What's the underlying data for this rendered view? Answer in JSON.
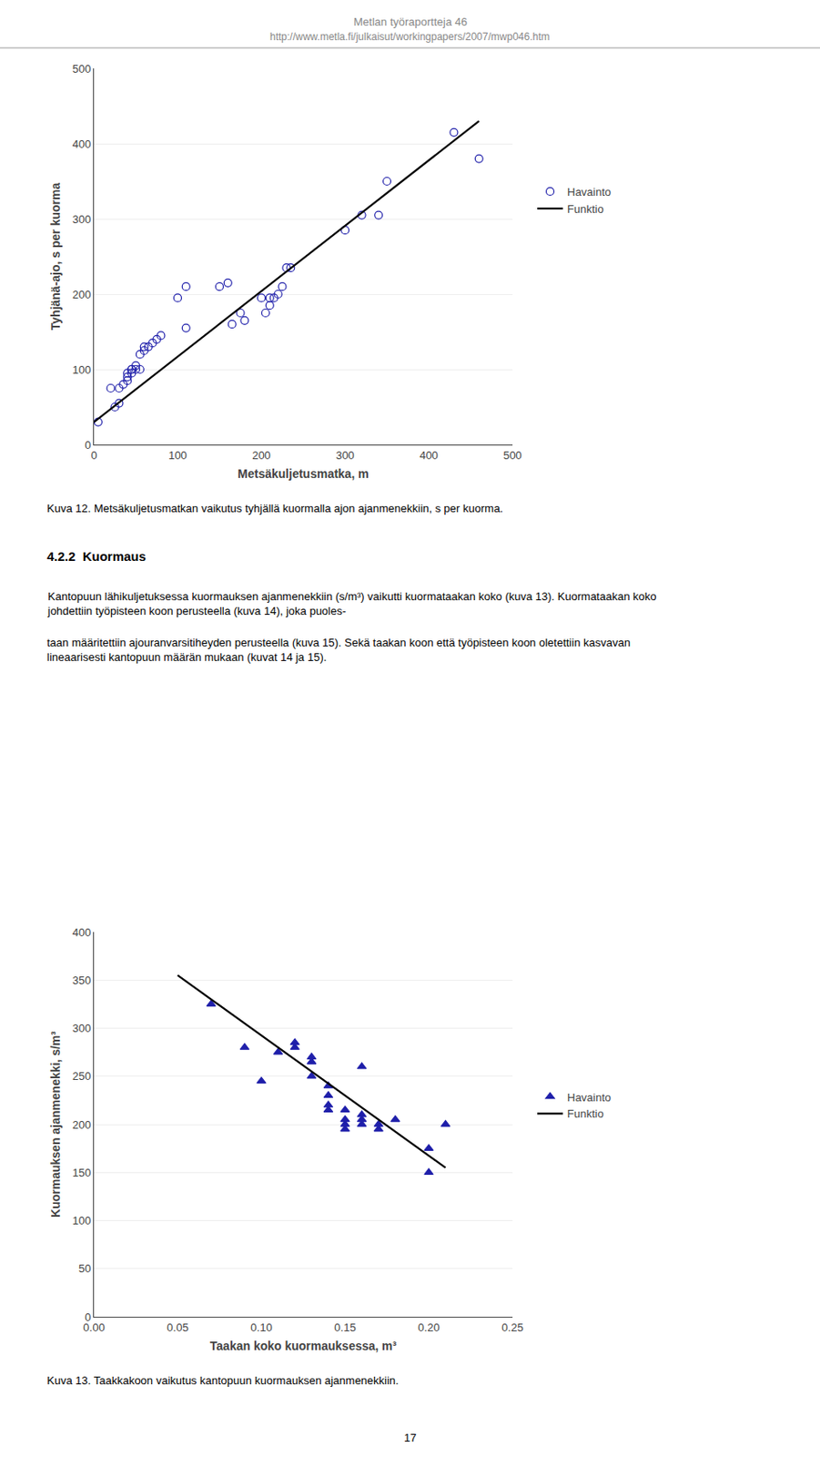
{
  "annotations": [
    "Metlan työraportteja 46",
    "http://www.metla.fi/julkaisut/workingpapers/2007/mwp046.htm",
    "4.2.2  Kuormaus",
    "Kantopuun lähikuljetuksessa kuormauksen ajanmenekkiin (s/m³) vaikutti kuormataakan koko (kuva 13). Kuormataakan koko johdettiin työpisteen koon perusteella (kuva 14), joka puoles-",
    "taan määritettiin ajouranvarsitiheyden perusteella (kuva 15). Sekä taakan koon että työpisteen koon oletettiin kasvavan lineaarisesti kantopuun määrän mukaan (kuvat 14 ja 15).",
    "17"
  ],
  "chart_data": [
    {
      "type": "scatter",
      "x_label": "Metsäkuljetusmatka, m",
      "y_label": "Tyhjänä-ajo, s per kuorma",
      "annotations": [
        "Kuva 12. Metsäkuljetusmatkan vaikutus tyhjällä kuormalla ajon ajanmenekkiin, s per kuorma."
      ],
      "xlim": [
        0,
        500
      ],
      "ylim": [
        0,
        500
      ],
      "xticks": [
        0,
        100,
        200,
        300,
        400,
        500
      ],
      "yticks": [
        0,
        100,
        200,
        300,
        400,
        500
      ],
      "grid": "y",
      "legend": "right",
      "series": [
        {
          "name": "Havainto",
          "type": "scatter",
          "marker": "circle-open",
          "color": "#1F1FAA",
          "x": [
            5,
            20,
            25,
            30,
            30,
            35,
            40,
            40,
            40,
            45,
            45,
            45,
            50,
            50,
            55,
            55,
            60,
            60,
            65,
            70,
            75,
            80,
            100,
            110,
            110,
            150,
            160,
            165,
            175,
            180,
            200,
            205,
            210,
            210,
            215,
            220,
            225,
            230,
            235,
            300,
            320,
            340,
            350,
            430,
            460
          ],
          "values": [
            30,
            75,
            50,
            55,
            75,
            80,
            85,
            90,
            95,
            95,
            100,
            100,
            100,
            105,
            100,
            120,
            125,
            130,
            130,
            135,
            140,
            145,
            195,
            155,
            210,
            210,
            215,
            160,
            175,
            165,
            195,
            175,
            185,
            195,
            195,
            200,
            210,
            235,
            235,
            285,
            305,
            305,
            350,
            415,
            380
          ]
        },
        {
          "name": "Funktio",
          "type": "line",
          "color": "#000000",
          "x": [
            0,
            460
          ],
          "values": [
            30,
            430
          ]
        }
      ]
    },
    {
      "type": "scatter",
      "x_label": "Taakan koko kuormauksessa, m³",
      "y_label": "Kuormauksen ajanmenekki, s/m³",
      "annotations": [
        "Kuva 13. Taakkakoon vaikutus kantopuun kuormauksen ajanmenekkiin."
      ],
      "xlim": [
        0,
        0.25
      ],
      "ylim": [
        0,
        400
      ],
      "xticks": [
        {
          "value": 0,
          "label": "0.00"
        },
        0.05,
        {
          "value": 0.1,
          "label": "0.10"
        },
        0.15,
        {
          "value": 0.2,
          "label": "0.20"
        },
        0.25
      ],
      "yticks": [
        0,
        50,
        100,
        150,
        200,
        250,
        300,
        350,
        400
      ],
      "grid": "y",
      "legend": "right",
      "series": [
        {
          "name": "Havainto",
          "type": "scatter",
          "marker": "triangle-up",
          "color": "#1F1FAA",
          "x": [
            0.07,
            0.09,
            0.1,
            0.11,
            0.12,
            0.12,
            0.13,
            0.13,
            0.13,
            0.14,
            0.14,
            0.14,
            0.14,
            0.15,
            0.15,
            0.15,
            0.15,
            0.16,
            0.16,
            0.16,
            0.16,
            0.17,
            0.17,
            0.18,
            0.2,
            0.2,
            0.21
          ],
          "values": [
            325,
            280,
            245,
            275,
            280,
            285,
            250,
            265,
            270,
            215,
            220,
            230,
            240,
            195,
            200,
            205,
            215,
            200,
            205,
            210,
            260,
            195,
            200,
            205,
            150,
            175,
            200
          ]
        },
        {
          "name": "Funktio",
          "type": "line",
          "color": "#000000",
          "x": [
            0.05,
            0.21
          ],
          "values": [
            355,
            155
          ]
        }
      ]
    }
  ]
}
